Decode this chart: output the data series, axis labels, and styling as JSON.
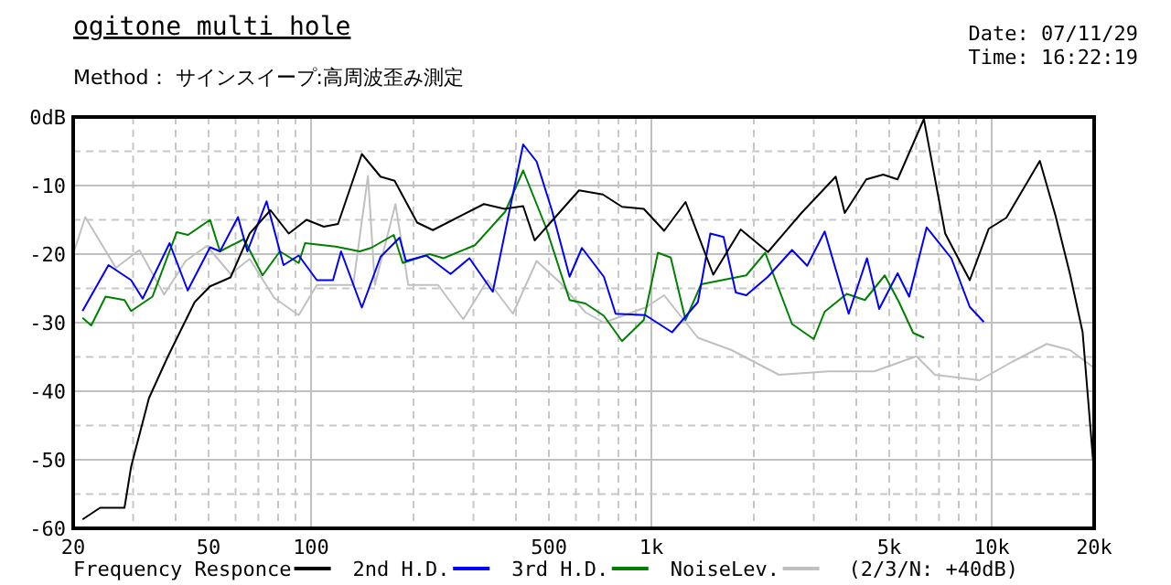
{
  "chart_data": {
    "type": "line",
    "title": "ogitone multi hole",
    "subtitle": "Method： サインスイープ:高周波歪み測定",
    "annotations": [
      "Date: 07/11/29",
      "Time: 16:22:19",
      "(2/3/N: +40dB)"
    ],
    "log": "x",
    "grid": true,
    "legend": "bottom",
    "line_style": "solid",
    "marker": "none",
    "xlim": [
      20,
      20000
    ],
    "xticks": [
      20,
      50,
      100,
      500,
      {
        "value": 1000,
        "label": "1k"
      },
      {
        "value": 5000,
        "label": "5k"
      },
      {
        "value": 10000,
        "label": "10k"
      },
      {
        "value": 20000,
        "label": "20k"
      }
    ],
    "ylim": [
      -60,
      0
    ],
    "yticks": [
      {
        "value": 0,
        "label": "0dB"
      },
      -10,
      -20,
      -30,
      -40,
      -50,
      -60
    ],
    "series": [
      {
        "name": "Frequency Responce",
        "color": "#000000",
        "x": [
          21.3,
          24,
          28.3,
          29.6,
          33.4,
          37.9,
          45.5,
          50.5,
          58,
          66,
          76,
          86,
          97,
          109,
          120,
          141,
          160,
          176,
          205,
          228,
          322,
          370,
          420,
          454,
          520,
          613,
          720,
          820,
          950,
          1090,
          1260,
          1520,
          1830,
          2200,
          2760,
          3480,
          3700,
          4280,
          4800,
          5290,
          6320,
          7300,
          8620,
          9800,
          11040,
          13850,
          15400,
          17000,
          18500,
          20000
        ],
        "values": [
          -58.7,
          -57,
          -57,
          -51,
          -41,
          -35,
          -27,
          -24.7,
          -23.4,
          -17,
          -13.6,
          -17,
          -15,
          -16,
          -15.6,
          -5.4,
          -8.7,
          -9.3,
          -15.4,
          -16.5,
          -12.7,
          -13.4,
          -13,
          -18,
          -14.7,
          -10.7,
          -11.3,
          -13.1,
          -13.4,
          -16.6,
          -12.4,
          -23,
          -16.4,
          -19.7,
          -14,
          -8.7,
          -14,
          -9.1,
          -8.4,
          -9.1,
          -0.3,
          -17,
          -23.8,
          -16.3,
          -14.7,
          -6.4,
          -14.4,
          -23,
          -31.4,
          -52
        ]
      },
      {
        "name": "2nd H.D.",
        "color": "#0000ff",
        "x": [
          21.3,
          25.4,
          29.6,
          32,
          38.4,
          43.4,
          50.5,
          54,
          61,
          65,
          74,
          83,
          92,
          104,
          116,
          122.5,
          141,
          160,
          182,
          190,
          218,
          257,
          292,
          342,
          420,
          460,
          510,
          575,
          625,
          725,
          785,
          960,
          1150,
          1370,
          1490,
          1630,
          1770,
          1900,
          2200,
          2590,
          2870,
          3230,
          3800,
          4300,
          4670,
          5290,
          5720,
          6440,
          7610,
          8620,
          9480
        ],
        "values": [
          -28.3,
          -21.6,
          -23.8,
          -26.5,
          -18.4,
          -25.3,
          -19,
          -19.6,
          -14.6,
          -19.6,
          -12.3,
          -21.6,
          -20.2,
          -23.8,
          -23.8,
          -19.6,
          -27.8,
          -20.4,
          -17.6,
          -21,
          -20.2,
          -22.9,
          -20.6,
          -25.5,
          -4,
          -6.5,
          -13.6,
          -23.3,
          -19.1,
          -23.3,
          -28.7,
          -28.9,
          -31.4,
          -27,
          -17,
          -17.5,
          -25.6,
          -26,
          -23.3,
          -19.4,
          -21.7,
          -16.7,
          -28.7,
          -20.6,
          -28,
          -22.8,
          -26.2,
          -16.1,
          -20.6,
          -27.7,
          -29.9
        ]
      },
      {
        "name": "3rd H.D.",
        "color": "#008000",
        "x": [
          21.3,
          22.6,
          24.9,
          28.3,
          29.6,
          34.2,
          40.3,
          43.5,
          50.5,
          54,
          63.5,
          72,
          81,
          92,
          96,
          118,
          139,
          150,
          175,
          186,
          223,
          245,
          303,
          372,
          420,
          490,
          575,
          640,
          725,
          820,
          950,
          1045,
          1140,
          1260,
          1400,
          1900,
          2160,
          2590,
          3000,
          3230,
          3750,
          4240,
          4850,
          5340,
          5880,
          6330
        ],
        "values": [
          -29.3,
          -30.4,
          -26.2,
          -26.7,
          -28.3,
          -26.2,
          -16.8,
          -17.2,
          -15,
          -19.6,
          -17.8,
          -23.1,
          -19.6,
          -21.3,
          -18.4,
          -18.9,
          -19.6,
          -19.1,
          -17.2,
          -21.3,
          -20,
          -20.6,
          -18.7,
          -13.8,
          -7.8,
          -16.1,
          -26.7,
          -27.2,
          -29,
          -32.7,
          -29.6,
          -19.8,
          -20.5,
          -29.6,
          -24.4,
          -23.1,
          -19.8,
          -30.2,
          -32.4,
          -28.4,
          -25.8,
          -26.7,
          -23.1,
          -27,
          -31.5,
          -32.2
        ]
      },
      {
        "name": "NoiseLev.",
        "color": "#c0c0c0",
        "x": [
          20,
          21.7,
          26.7,
          31.3,
          37,
          42.8,
          49.4,
          58,
          66,
          78,
          92,
          104,
          133,
          147,
          154,
          177,
          193,
          236,
          280,
          330,
          392,
          460,
          540,
          640,
          725,
          960,
          1090,
          1370,
          1720,
          2370,
          3320,
          4520,
          6010,
          6810,
          9200,
          11500,
          14520,
          17000,
          20000
        ],
        "values": [
          -20,
          -14.6,
          -22,
          -19.4,
          -25.9,
          -21,
          -18.8,
          -22.9,
          -20.7,
          -26.4,
          -28.9,
          -24.5,
          -24.5,
          -8.6,
          -24.5,
          -12.7,
          -24.5,
          -24.5,
          -29.5,
          -23.8,
          -28.7,
          -21,
          -24.2,
          -28.5,
          -30,
          -27.8,
          -26,
          -32.2,
          -34,
          -37.6,
          -37.1,
          -37.1,
          -34.9,
          -37.6,
          -38.4,
          -35.7,
          -33.1,
          -34,
          -36.6
        ]
      }
    ]
  }
}
